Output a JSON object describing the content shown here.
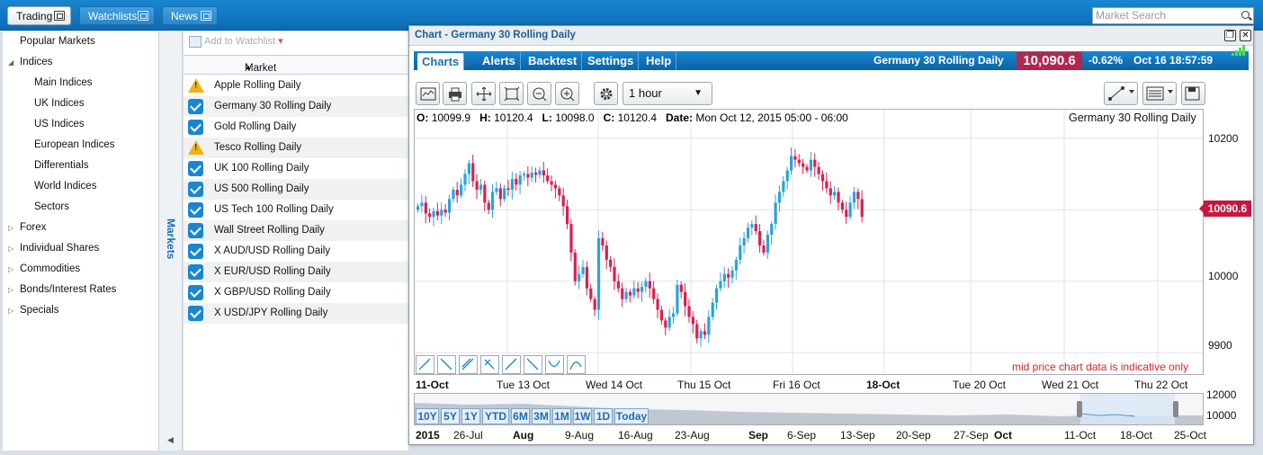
{
  "topbar": {
    "tabs": [
      {
        "label": "Trading",
        "active": true
      },
      {
        "label": "Watchlists",
        "active": false
      },
      {
        "label": "News",
        "active": false
      }
    ],
    "search_placeholder": "Market Search"
  },
  "leftnav": {
    "items": [
      {
        "label": "Popular Markets",
        "level": 0,
        "arrow": ""
      },
      {
        "label": "Indices",
        "level": 0,
        "arrow": "expanded"
      },
      {
        "label": "Main Indices",
        "level": 1,
        "arrow": ""
      },
      {
        "label": "UK Indices",
        "level": 1,
        "arrow": ""
      },
      {
        "label": "US Indices",
        "level": 1,
        "arrow": ""
      },
      {
        "label": "European Indices",
        "level": 1,
        "arrow": ""
      },
      {
        "label": "Differentials",
        "level": 1,
        "arrow": ""
      },
      {
        "label": "World Indices",
        "level": 1,
        "arrow": ""
      },
      {
        "label": "Sectors",
        "level": 1,
        "arrow": ""
      },
      {
        "label": "Forex",
        "level": 0,
        "arrow": "collapsed"
      },
      {
        "label": "Individual Shares",
        "level": 0,
        "arrow": "collapsed"
      },
      {
        "label": "Commodities",
        "level": 0,
        "arrow": "collapsed"
      },
      {
        "label": "Bonds/Interest Rates",
        "level": 0,
        "arrow": "collapsed"
      },
      {
        "label": "Specials",
        "level": 0,
        "arrow": "collapsed"
      }
    ],
    "side_tab": "Markets"
  },
  "watchlist": {
    "add_label": "Add to Watchlist",
    "column_header": "Market",
    "rows": [
      {
        "name": "Apple Rolling Daily",
        "status": "warning"
      },
      {
        "name": "Germany 30 Rolling Daily",
        "status": "checked"
      },
      {
        "name": "Gold Rolling Daily",
        "status": "checked"
      },
      {
        "name": "Tesco Rolling Daily",
        "status": "warning"
      },
      {
        "name": "UK 100 Rolling Daily",
        "status": "checked"
      },
      {
        "name": "US 500 Rolling Daily",
        "status": "checked"
      },
      {
        "name": "US Tech 100 Rolling Daily",
        "status": "checked"
      },
      {
        "name": "Wall Street Rolling Daily",
        "status": "checked"
      },
      {
        "name": "X AUD/USD Rolling Daily",
        "status": "checked"
      },
      {
        "name": "X EUR/USD Rolling Daily",
        "status": "checked"
      },
      {
        "name": "X GBP/USD Rolling Daily",
        "status": "checked"
      },
      {
        "name": "X USD/JPY Rolling Daily",
        "status": "checked"
      }
    ]
  },
  "chartwin": {
    "title": "Chart - Germany 30 Rolling Daily",
    "menu": [
      "Charts",
      "Alerts",
      "Backtest",
      "Settings",
      "Help"
    ],
    "instrument": "Germany 30 Rolling Daily",
    "price": "10,090.6",
    "change": "-0.62%",
    "time": "Oct 16 18:57:59",
    "interval": "1 hour",
    "ohlc": {
      "o_label": "O:",
      "o": "10099.9",
      "h_label": "H:",
      "h": "10120.4",
      "l_label": "L:",
      "l": "10098.0",
      "c_label": "C:",
      "c": "10120.4",
      "date_label": "Date:",
      "date": "Mon Oct 12, 2015 05:00 - 06:00"
    },
    "symbol_label": "Germany 30 Rolling Daily",
    "indicative": "mid price chart data is indicative only",
    "current_price_tag": "10090.6",
    "ranges": [
      "10Y",
      "5Y",
      "1Y",
      "YTD",
      "6M",
      "3M",
      "1M",
      "1W",
      "1D",
      "Today"
    ],
    "nav_x_labels": [
      "2015",
      "26-Jul",
      "Aug",
      "9-Aug",
      "16-Aug",
      "23-Aug",
      "Sep",
      "6-Sep",
      "13-Sep",
      "20-Sep",
      "27-Sep",
      "Oct",
      "11-Oct",
      "18-Oct",
      "25-Oct"
    ],
    "nav_y_labels": [
      "12000",
      "10000"
    ],
    "colors": {
      "up": "#2aa3dd",
      "down": "#d92050",
      "accent": "#1a86d0"
    }
  },
  "chart_data": {
    "type": "candlestick",
    "title": "Germany 30 Rolling Daily",
    "y_ticks": [
      "10200",
      "10100",
      "10000",
      "9900"
    ],
    "x_labels": [
      "11-Oct",
      "Tue 13 Oct",
      "Wed 14 Oct",
      "Thu 15 Oct",
      "Fri 16 Oct",
      "18-Oct",
      "Tue 20 Oct",
      "Wed 21 Oct",
      "Thu 22 Oct"
    ],
    "ylim": [
      9870,
      10240
    ],
    "grid": true,
    "closes": [
      10105,
      10110,
      10095,
      10090,
      10098,
      10092,
      10100,
      10096,
      10115,
      10128,
      10120,
      10135,
      10150,
      10165,
      10140,
      10128,
      10135,
      10110,
      10100,
      10125,
      10130,
      10115,
      10130,
      10128,
      10143,
      10135,
      10148,
      10150,
      10145,
      10152,
      10149,
      10155,
      10148,
      10140,
      10135,
      10130,
      10120,
      10105,
      10080,
      10040,
      10000,
      10010,
      10020,
      9990,
      9975,
      9960,
      10060,
      10050,
      10030,
      10020,
      10000,
      9990,
      9975,
      9985,
      9980,
      9990,
      9985,
      9992,
      10000,
      9990,
      9975,
      9960,
      9945,
      9935,
      9950,
      9955,
      9995,
      9985,
      9965,
      9950,
      9940,
      9920,
      9930,
      9925,
      9950,
      9970,
      9990,
      10000,
      10010,
      10005,
      10015,
      10030,
      10050,
      10060,
      10075,
      10080,
      10070,
      10050,
      10040,
      10065,
      10080,
      10110,
      10125,
      10140,
      10155,
      10175,
      10170,
      10165,
      10160,
      10155,
      10170,
      10160,
      10150,
      10140,
      10130,
      10120,
      10125,
      10110,
      10100,
      10090,
      10110,
      10125,
      10115,
      10090
    ]
  }
}
